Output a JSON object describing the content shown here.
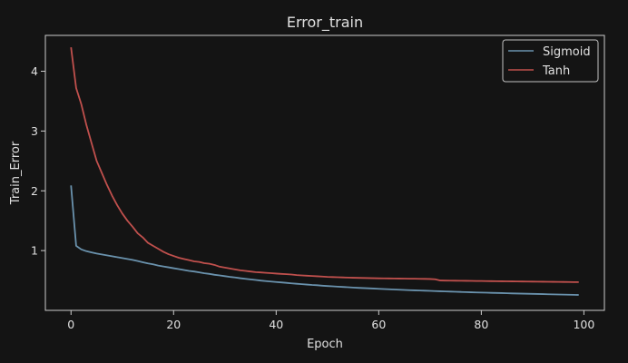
{
  "chart_data": {
    "type": "line",
    "title": "Error_train",
    "xlabel": "Epoch",
    "ylabel": "Train_Error",
    "xlim": [
      -5,
      104
    ],
    "ylim": [
      0,
      4.6
    ],
    "x_ticks": [
      0,
      20,
      40,
      60,
      80,
      100
    ],
    "y_ticks": [
      1,
      2,
      3,
      4
    ],
    "grid": false,
    "legend_position": "top-right",
    "background_color": "#141414",
    "axes_color": "#cccccc",
    "x": [
      0,
      1,
      2,
      3,
      4,
      5,
      6,
      7,
      8,
      9,
      10,
      11,
      12,
      13,
      14,
      15,
      16,
      17,
      18,
      19,
      20,
      21,
      22,
      23,
      24,
      25,
      26,
      27,
      28,
      29,
      30,
      31,
      32,
      33,
      34,
      35,
      36,
      37,
      38,
      39,
      40,
      41,
      42,
      43,
      44,
      45,
      46,
      47,
      48,
      49,
      50,
      51,
      52,
      53,
      54,
      55,
      56,
      57,
      58,
      59,
      60,
      61,
      62,
      63,
      64,
      65,
      66,
      67,
      68,
      69,
      70,
      71,
      72,
      73,
      74,
      75,
      76,
      77,
      78,
      79,
      80,
      81,
      82,
      83,
      84,
      85,
      86,
      87,
      88,
      89,
      90,
      91,
      92,
      93,
      94,
      95,
      96,
      97,
      98,
      99
    ],
    "series": [
      {
        "name": "Sigmoid",
        "color": "#6a92ad",
        "values": [
          2.09,
          1.08,
          1.02,
          0.99,
          0.97,
          0.95,
          0.935,
          0.92,
          0.905,
          0.89,
          0.875,
          0.86,
          0.845,
          0.825,
          0.805,
          0.785,
          0.77,
          0.75,
          0.735,
          0.72,
          0.705,
          0.69,
          0.675,
          0.66,
          0.65,
          0.635,
          0.62,
          0.61,
          0.595,
          0.585,
          0.572,
          0.56,
          0.55,
          0.538,
          0.528,
          0.518,
          0.508,
          0.498,
          0.49,
          0.482,
          0.475,
          0.468,
          0.46,
          0.452,
          0.445,
          0.438,
          0.432,
          0.425,
          0.42,
          0.413,
          0.407,
          0.402,
          0.397,
          0.392,
          0.387,
          0.382,
          0.377,
          0.373,
          0.369,
          0.365,
          0.361,
          0.357,
          0.353,
          0.349,
          0.345,
          0.342,
          0.338,
          0.335,
          0.332,
          0.329,
          0.326,
          0.323,
          0.32,
          0.317,
          0.314,
          0.311,
          0.308,
          0.306,
          0.303,
          0.3,
          0.298,
          0.296,
          0.293,
          0.291,
          0.289,
          0.286,
          0.284,
          0.282,
          0.28,
          0.278,
          0.276,
          0.274,
          0.272,
          0.27,
          0.268,
          0.266,
          0.264,
          0.262,
          0.26,
          0.258
        ]
      },
      {
        "name": "Tanh",
        "color": "#c0504d",
        "values": [
          4.4,
          3.72,
          3.45,
          3.1,
          2.8,
          2.5,
          2.3,
          2.1,
          1.92,
          1.76,
          1.62,
          1.5,
          1.4,
          1.29,
          1.22,
          1.13,
          1.08,
          1.03,
          0.98,
          0.94,
          0.91,
          0.88,
          0.86,
          0.84,
          0.82,
          0.81,
          0.79,
          0.78,
          0.76,
          0.73,
          0.715,
          0.7,
          0.685,
          0.67,
          0.66,
          0.65,
          0.64,
          0.635,
          0.628,
          0.622,
          0.616,
          0.61,
          0.605,
          0.6,
          0.59,
          0.585,
          0.58,
          0.575,
          0.57,
          0.565,
          0.56,
          0.557,
          0.554,
          0.551,
          0.548,
          0.546,
          0.544,
          0.542,
          0.54,
          0.538,
          0.536,
          0.535,
          0.534,
          0.533,
          0.532,
          0.531,
          0.53,
          0.529,
          0.528,
          0.527,
          0.525,
          0.52,
          0.5,
          0.498,
          0.497,
          0.496,
          0.495,
          0.494,
          0.493,
          0.492,
          0.491,
          0.49,
          0.489,
          0.488,
          0.487,
          0.486,
          0.485,
          0.484,
          0.483,
          0.482,
          0.481,
          0.48,
          0.479,
          0.478,
          0.477,
          0.476,
          0.475,
          0.474,
          0.473,
          0.472
        ]
      }
    ]
  }
}
